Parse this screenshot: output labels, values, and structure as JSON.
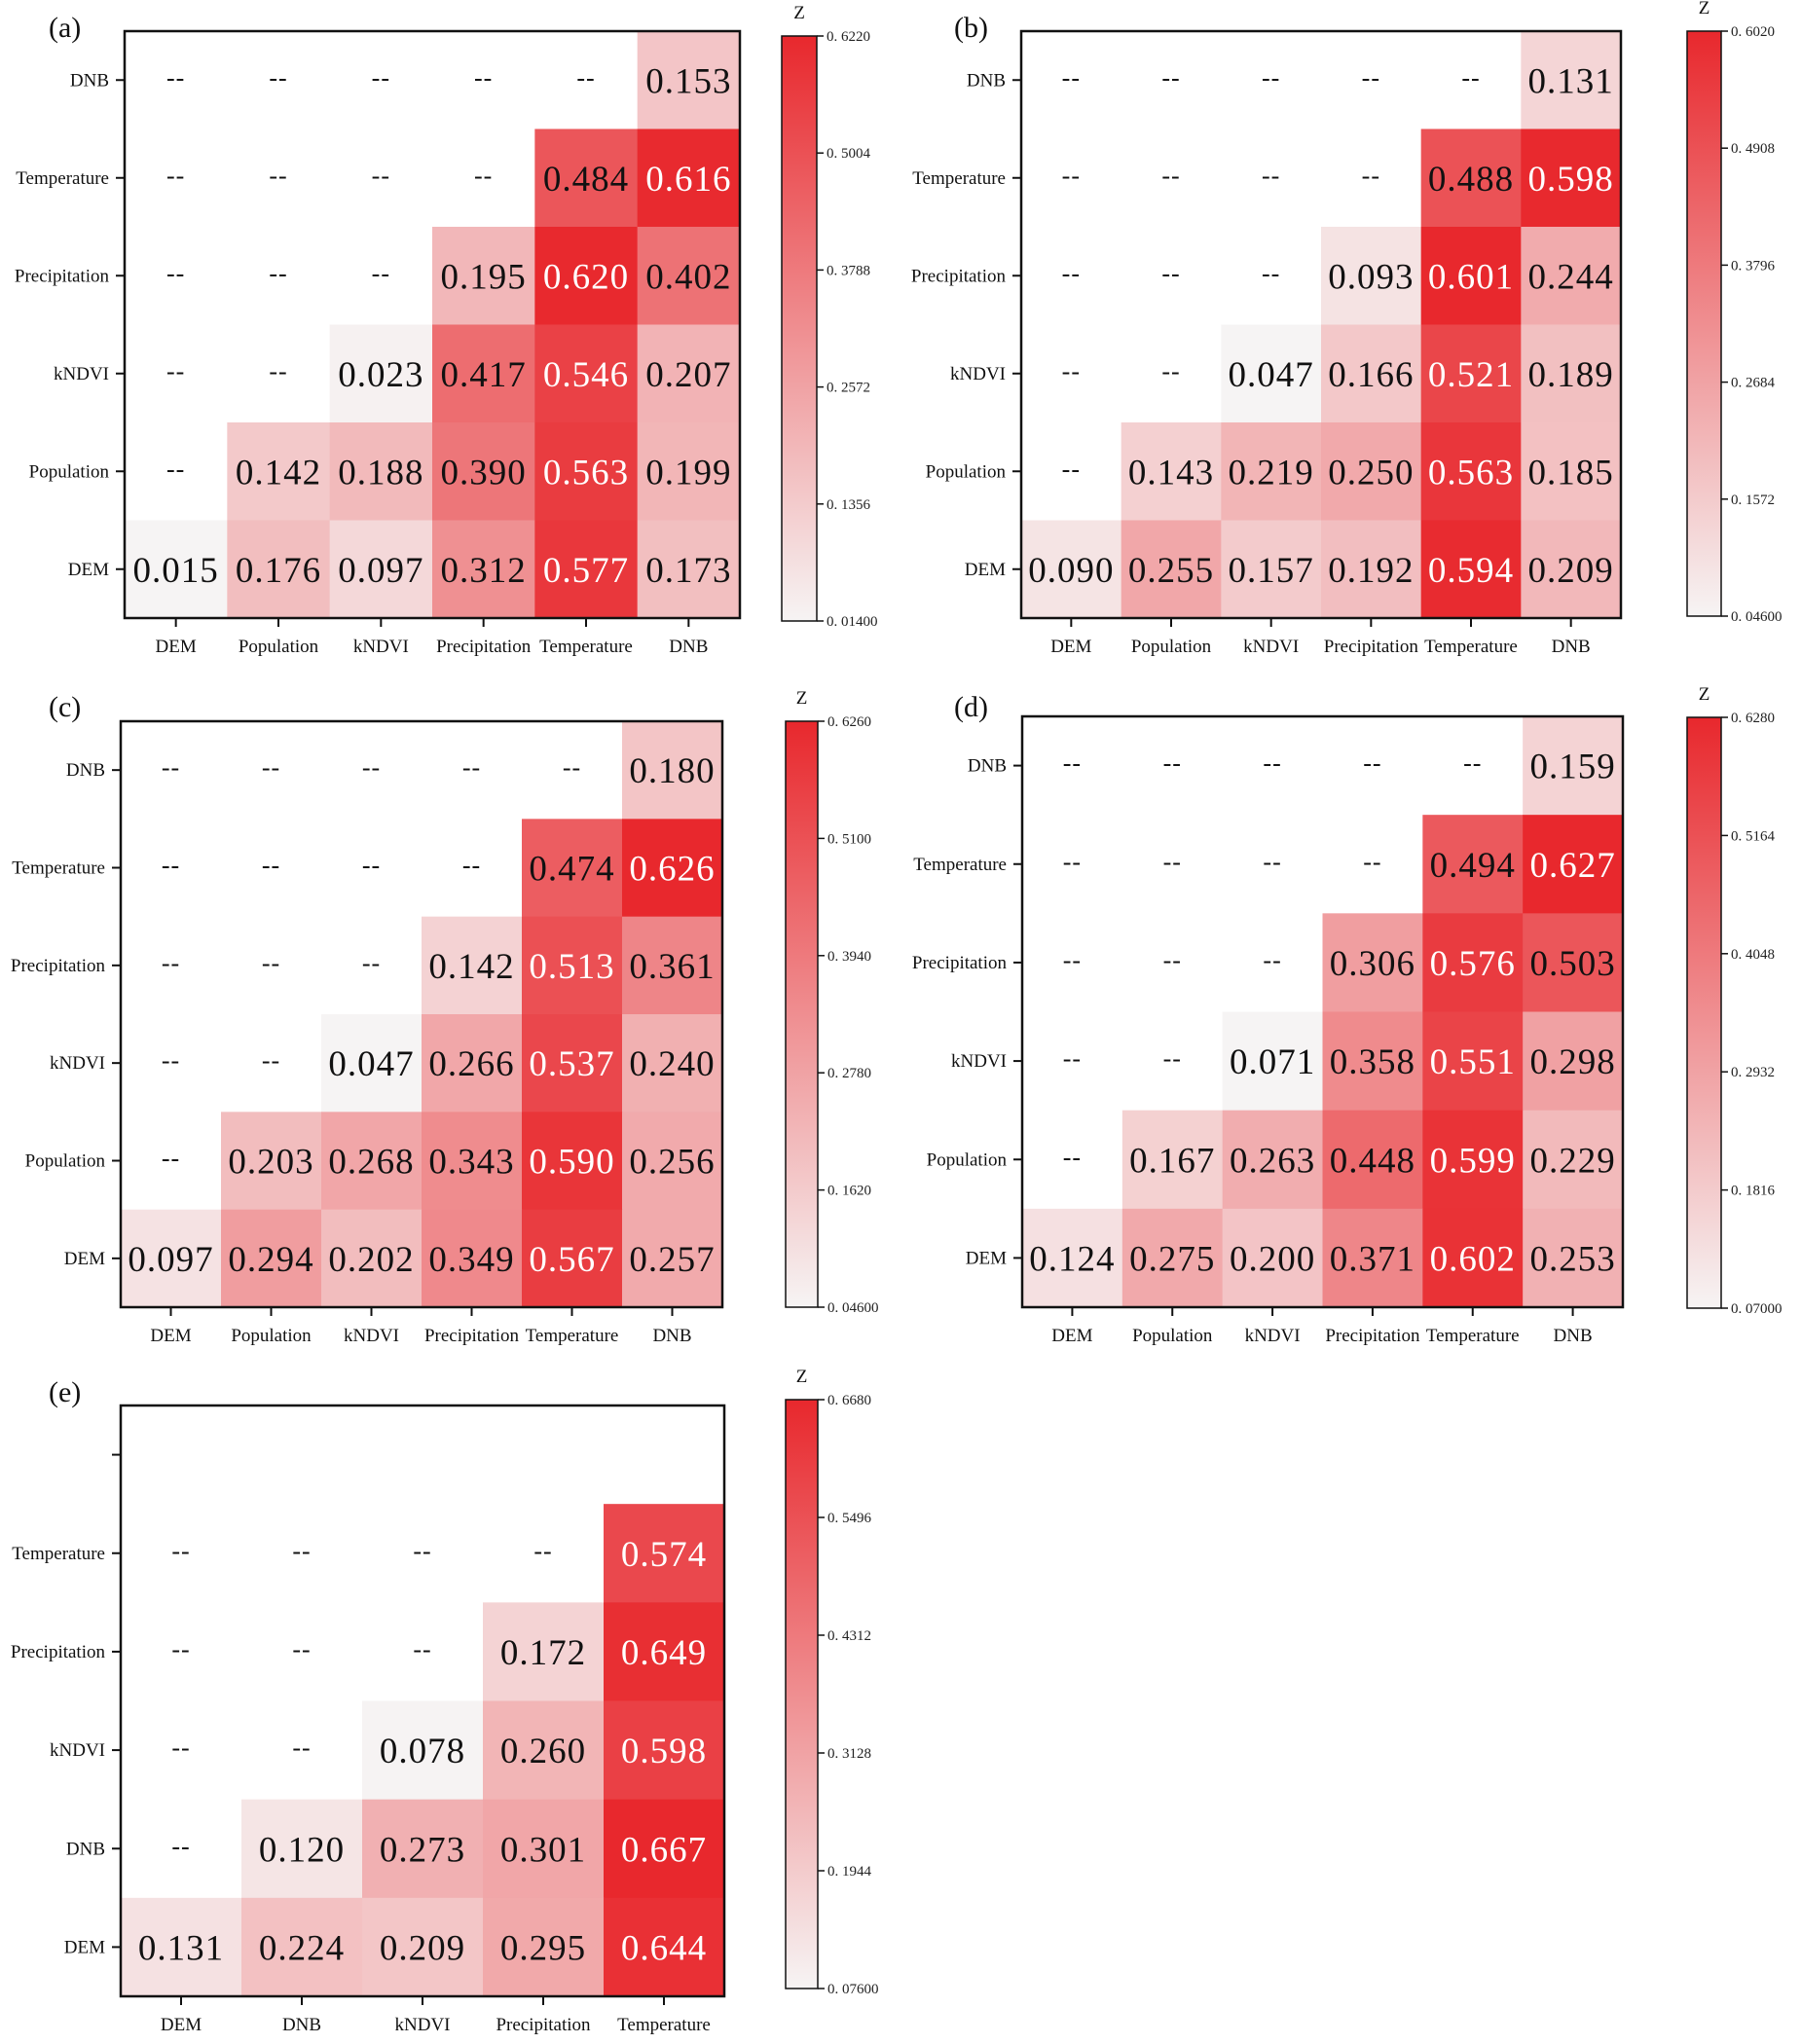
{
  "colors": {
    "low": "#f6f4f4",
    "high": "#e8282d",
    "text_dark": "#111111",
    "text_light": "#ffffff"
  },
  "chart_data": [
    {
      "type": "heatmap",
      "panel": "(a)",
      "colorbar_title": "Z",
      "colorbar_ticks": [
        "0. 6220",
        "0. 5004",
        "0. 3788",
        "0. 2572",
        "0. 1356",
        "0. 01400"
      ],
      "zlim": [
        0.014,
        0.622
      ],
      "rows": [
        "DNB",
        "Temperature",
        "Precipitation",
        "kNDVI",
        "Population",
        "DEM"
      ],
      "columns": [
        "DEM",
        "Population",
        "kNDVI",
        "Precipitation",
        "Temperature",
        "DNB"
      ],
      "cells": [
        [
          "--",
          "--",
          "--",
          "--",
          "--",
          "0.153"
        ],
        [
          "--",
          "--",
          "--",
          "--",
          "0.484",
          "0.616"
        ],
        [
          "--",
          "--",
          "--",
          "0.195",
          "0.620",
          "0.402"
        ],
        [
          "--",
          "--",
          "0.023",
          "0.417",
          "0.546",
          "0.207"
        ],
        [
          "--",
          "0.142",
          "0.188",
          "0.390",
          "0.563",
          "0.199"
        ],
        [
          "0.015",
          "0.176",
          "0.097",
          "0.312",
          "0.577",
          "0.173"
        ]
      ]
    },
    {
      "type": "heatmap",
      "panel": "(b)",
      "colorbar_title": "Z",
      "colorbar_ticks": [
        "0. 6020",
        "0. 4908",
        "0. 3796",
        "0. 2684",
        "0. 1572",
        "0. 04600"
      ],
      "zlim": [
        0.046,
        0.602
      ],
      "rows": [
        "DNB",
        "Temperature",
        "Precipitation",
        "kNDVI",
        "Population",
        "DEM"
      ],
      "columns": [
        "DEM",
        "Population",
        "kNDVI",
        "Precipitation",
        "Temperature",
        "DNB"
      ],
      "cells": [
        [
          "--",
          "--",
          "--",
          "--",
          "--",
          "0.131"
        ],
        [
          "--",
          "--",
          "--",
          "--",
          "0.488",
          "0.598"
        ],
        [
          "--",
          "--",
          "--",
          "0.093",
          "0.601",
          "0.244"
        ],
        [
          "--",
          "--",
          "0.047",
          "0.166",
          "0.521",
          "0.189"
        ],
        [
          "--",
          "0.143",
          "0.219",
          "0.250",
          "0.563",
          "0.185"
        ],
        [
          "0.090",
          "0.255",
          "0.157",
          "0.192",
          "0.594",
          "0.209"
        ]
      ]
    },
    {
      "type": "heatmap",
      "panel": "(c)",
      "colorbar_title": "Z",
      "colorbar_ticks": [
        "0. 6260",
        "0. 5100",
        "0. 3940",
        "0. 2780",
        "0. 1620",
        "0. 04600"
      ],
      "zlim": [
        0.046,
        0.626
      ],
      "rows": [
        "DNB",
        "Temperature",
        "Precipitation",
        "kNDVI",
        "Population",
        "DEM"
      ],
      "columns": [
        "DEM",
        "Population",
        "kNDVI",
        "Precipitation",
        "Temperature",
        "DNB"
      ],
      "cells": [
        [
          "--",
          "--",
          "--",
          "--",
          "--",
          "0.180"
        ],
        [
          "--",
          "--",
          "--",
          "--",
          "0.474",
          "0.626"
        ],
        [
          "--",
          "--",
          "--",
          "0.142",
          "0.513",
          "0.361"
        ],
        [
          "--",
          "--",
          "0.047",
          "0.266",
          "0.537",
          "0.240"
        ],
        [
          "--",
          "0.203",
          "0.268",
          "0.343",
          "0.590",
          "0.256"
        ],
        [
          "0.097",
          "0.294",
          "0.202",
          "0.349",
          "0.567",
          "0.257"
        ]
      ]
    },
    {
      "type": "heatmap",
      "panel": "(d)",
      "colorbar_title": "Z",
      "colorbar_ticks": [
        "0. 6280",
        "0. 5164",
        "0. 4048",
        "0. 2932",
        "0. 1816",
        "0. 07000"
      ],
      "zlim": [
        0.07,
        0.628
      ],
      "rows": [
        "DNB",
        "Temperature",
        "Precipitation",
        "kNDVI",
        "Population",
        "DEM"
      ],
      "columns": [
        "DEM",
        "Population",
        "kNDVI",
        "Precipitation",
        "Temperature",
        "DNB"
      ],
      "cells": [
        [
          "--",
          "--",
          "--",
          "--",
          "--",
          "0.159"
        ],
        [
          "--",
          "--",
          "--",
          "--",
          "0.494",
          "0.627"
        ],
        [
          "--",
          "--",
          "--",
          "0.306",
          "0.576",
          "0.503"
        ],
        [
          "--",
          "--",
          "0.071",
          "0.358",
          "0.551",
          "0.298"
        ],
        [
          "--",
          "0.167",
          "0.263",
          "0.448",
          "0.599",
          "0.229"
        ],
        [
          "0.124",
          "0.275",
          "0.200",
          "0.371",
          "0.602",
          "0.253"
        ]
      ]
    },
    {
      "type": "heatmap",
      "panel": "(e)",
      "colorbar_title": "Z",
      "colorbar_ticks": [
        "0. 6680",
        "0. 5496",
        "0. 4312",
        "0. 3128",
        "0. 1944",
        "0. 07600"
      ],
      "zlim": [
        0.076,
        0.668
      ],
      "rows": [
        "",
        "Temperature",
        "Precipitation",
        "kNDVI",
        "DNB",
        "DEM"
      ],
      "columns": [
        "DEM",
        "DNB",
        "kNDVI",
        "Precipitation",
        "Temperature"
      ],
      "cells": [
        [
          null,
          null,
          null,
          null,
          null
        ],
        [
          "--",
          "--",
          "--",
          "--",
          "0.574"
        ],
        [
          "--",
          "--",
          "--",
          "0.172",
          "0.649"
        ],
        [
          "--",
          "--",
          "0.078",
          "0.260",
          "0.598"
        ],
        [
          "--",
          "0.120",
          "0.273",
          "0.301",
          "0.667"
        ],
        [
          "0.131",
          "0.224",
          "0.209",
          "0.295",
          "0.644"
        ]
      ]
    }
  ]
}
